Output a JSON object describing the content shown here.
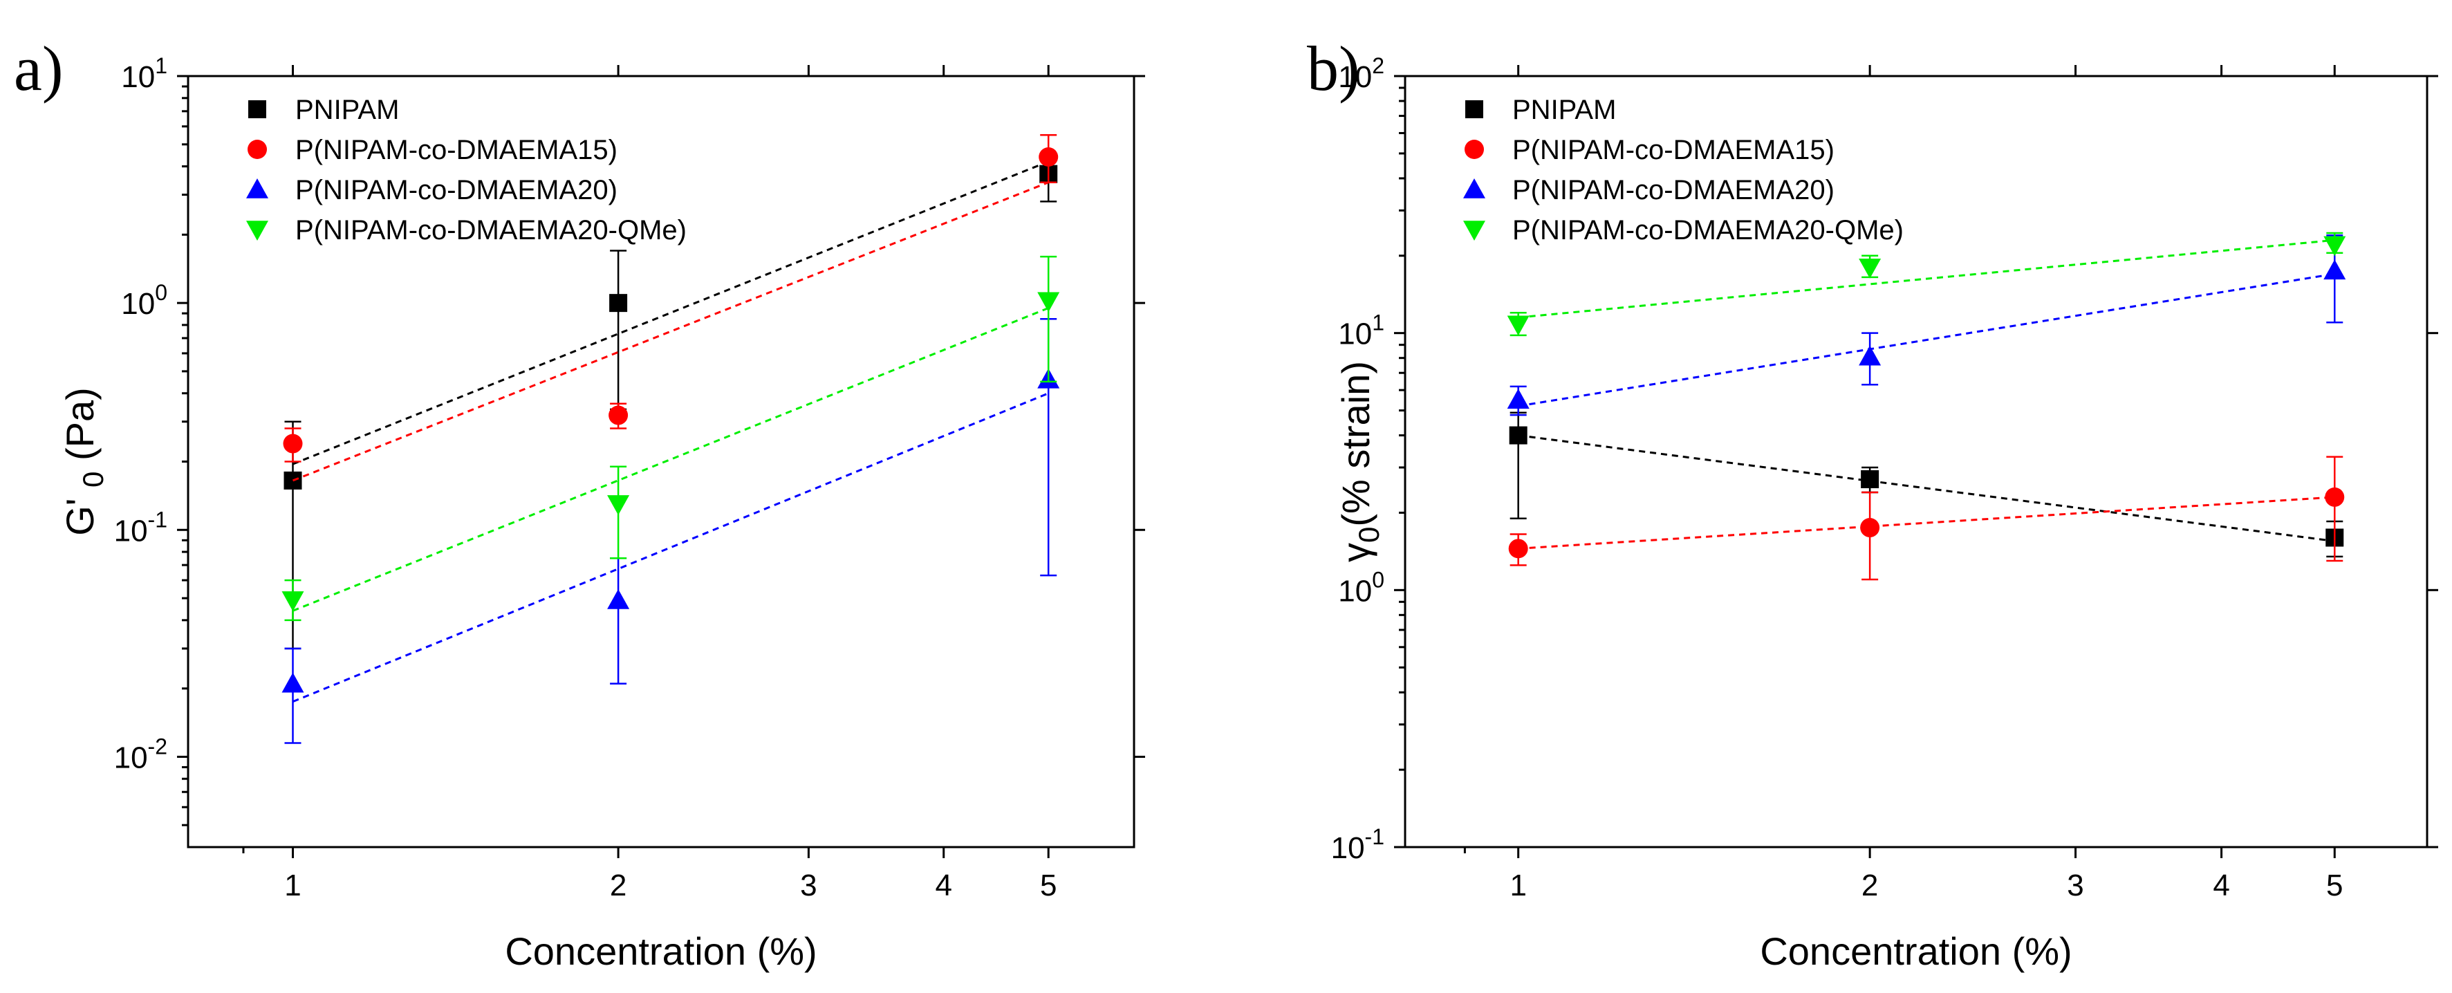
{
  "chart_data": [
    {
      "type": "scatter",
      "panel_label": "a)",
      "title": "",
      "xlabel": "Concentration (%)",
      "ylabel_main": "G' ",
      "ylabel_sub": "0",
      "ylabel_tail": " (Pa)",
      "xscale": "log",
      "yscale": "log",
      "xlim": [
        0.8,
        6.0
      ],
      "ylim": [
        0.004,
        10
      ],
      "xticks": [
        1,
        2,
        3,
        4,
        5
      ],
      "xtick_labels": [
        "1",
        "2",
        "3",
        "4",
        "5"
      ],
      "yticks": [
        0.01,
        0.1,
        1,
        10
      ],
      "ytick_base": [
        "10",
        "10",
        "10",
        "10"
      ],
      "ytick_exp": [
        "-2",
        "-1",
        "0",
        "1"
      ],
      "legend_position": "top-left",
      "series": [
        {
          "name": "PNIPAM",
          "color": "#000000",
          "marker": "square",
          "x": [
            1,
            2,
            5
          ],
          "y": [
            0.165,
            1.0,
            3.7
          ],
          "err_low": [
            0.03,
            0.34,
            2.8
          ],
          "err_high": [
            0.3,
            1.7,
            4.3
          ],
          "fit": [
            [
              1,
              0.195
            ],
            [
              5,
              4.2
            ]
          ]
        },
        {
          "name": "P(NIPAM-co-DMAEMA15)",
          "color": "#ff0000",
          "marker": "circle",
          "x": [
            1,
            2,
            5
          ],
          "y": [
            0.24,
            0.32,
            4.4
          ],
          "err_low": [
            0.2,
            0.28,
            3.4
          ],
          "err_high": [
            0.28,
            0.36,
            5.5
          ],
          "fit": [
            [
              1,
              0.165
            ],
            [
              5,
              3.4
            ]
          ]
        },
        {
          "name": "P(NIPAM-co-DMAEMA20)",
          "color": "#0000ff",
          "marker": "triangle-up",
          "x": [
            1,
            2,
            5
          ],
          "y": [
            0.021,
            0.049,
            0.46
          ],
          "err_low": [
            0.0115,
            0.021,
            0.063
          ],
          "err_high": [
            0.03,
            0.075,
            0.85
          ],
          "fit": [
            [
              1,
              0.0175
            ],
            [
              5,
              0.4
            ]
          ]
        },
        {
          "name": "P(NIPAM-co-DMAEMA20-QMe)",
          "color": "#00ee00",
          "marker": "triangle-down",
          "x": [
            1,
            2,
            5
          ],
          "y": [
            0.049,
            0.13,
            1.02
          ],
          "err_low": [
            0.04,
            0.075,
            0.45
          ],
          "err_high": [
            0.06,
            0.19,
            1.6
          ],
          "fit": [
            [
              1,
              0.044
            ],
            [
              5,
              0.95
            ]
          ]
        }
      ]
    },
    {
      "type": "scatter",
      "panel_label": "b)",
      "title": "",
      "xlabel": "Concentration (%)",
      "ylabel_main": "γ",
      "ylabel_sub": "0",
      "ylabel_tail": "(% strain)",
      "xscale": "log",
      "yscale": "log",
      "xlim": [
        0.8,
        6.0
      ],
      "ylim": [
        0.1,
        100
      ],
      "xticks": [
        1,
        2,
        3,
        4,
        5
      ],
      "xtick_labels": [
        "1",
        "2",
        "3",
        "4",
        "5"
      ],
      "yticks": [
        0.1,
        1,
        10,
        100
      ],
      "ytick_base": [
        "10",
        "10",
        "10",
        "10"
      ],
      "ytick_exp": [
        "-1",
        "0",
        "1",
        "2"
      ],
      "legend_position": "top-left",
      "series": [
        {
          "name": "PNIPAM",
          "color": "#000000",
          "marker": "square",
          "x": [
            1,
            2,
            5
          ],
          "y": [
            4.0,
            2.7,
            1.6
          ],
          "err_low": [
            1.9,
            2.4,
            1.35
          ],
          "err_high": [
            4.9,
            3.0,
            1.85
          ],
          "fit": [
            [
              1,
              4.0
            ],
            [
              5,
              1.55
            ]
          ]
        },
        {
          "name": "P(NIPAM-co-DMAEMA15)",
          "color": "#ff0000",
          "marker": "circle",
          "x": [
            1,
            2,
            5
          ],
          "y": [
            1.45,
            1.75,
            2.3
          ],
          "err_low": [
            1.25,
            1.1,
            1.3
          ],
          "err_high": [
            1.65,
            2.4,
            3.3
          ],
          "fit": [
            [
              1,
              1.45
            ],
            [
              5,
              2.3
            ]
          ]
        },
        {
          "name": "P(NIPAM-co-DMAEMA20)",
          "color": "#0000ff",
          "marker": "triangle-up",
          "x": [
            1,
            2,
            5
          ],
          "y": [
            5.5,
            8.1,
            17.5
          ],
          "err_low": [
            4.8,
            6.3,
            11.0
          ],
          "err_high": [
            6.2,
            10.0,
            24.0
          ],
          "fit": [
            [
              1,
              5.2
            ],
            [
              5,
              17.0
            ]
          ]
        },
        {
          "name": "P(NIPAM-co-DMAEMA20-QMe)",
          "color": "#00ee00",
          "marker": "triangle-down",
          "x": [
            1,
            2,
            5
          ],
          "y": [
            10.8,
            18.0,
            22.0
          ],
          "err_low": [
            9.8,
            16.5,
            20.5
          ],
          "err_high": [
            12.0,
            20.0,
            24.5
          ],
          "fit": [
            [
              1,
              11.5
            ],
            [
              5,
              23.0
            ]
          ]
        }
      ]
    }
  ]
}
